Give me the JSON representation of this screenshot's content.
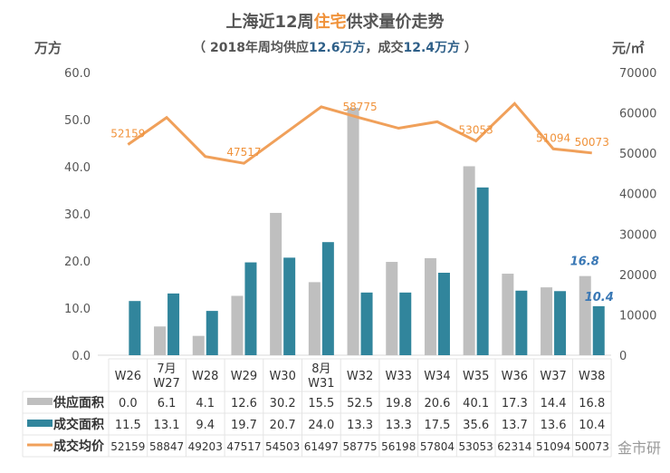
{
  "title": {
    "prefix": "上海近12周",
    "highlight": "住宅",
    "suffix": "供求量价走势"
  },
  "subtitle": {
    "p1": "（ 2018年周均供应",
    "v1": "12.6万方",
    "p2": "，成交",
    "v2": "12.4万方",
    "p3": " ）"
  },
  "watermark": "金市研",
  "chart_data": {
    "type": "bar+line",
    "categories": [
      [
        "",
        "W26"
      ],
      [
        "7月",
        "W27"
      ],
      [
        "",
        "W28"
      ],
      [
        "",
        "W29"
      ],
      [
        "",
        "W30"
      ],
      [
        "8月",
        "W31"
      ],
      [
        "",
        "W32"
      ],
      [
        "",
        "W33"
      ],
      [
        "",
        "W34"
      ],
      [
        "",
        "W35"
      ],
      [
        "",
        "W36"
      ],
      [
        "",
        "W37"
      ],
      [
        "",
        "W38"
      ]
    ],
    "left_axis": {
      "unit": "万方",
      "range": [
        0,
        60
      ],
      "ticks": [
        "0.0",
        "10.0",
        "20.0",
        "30.0",
        "40.0",
        "50.0",
        "60.0"
      ]
    },
    "right_axis": {
      "unit": "元/㎡",
      "range": [
        0,
        70000
      ],
      "ticks": [
        "0",
        "10000",
        "20000",
        "30000",
        "40000",
        "50000",
        "60000",
        "70000"
      ]
    },
    "series": [
      {
        "name": "供应面积",
        "type": "bar",
        "color": "#bfbfbf",
        "values": [
          0.0,
          6.1,
          4.1,
          12.6,
          30.2,
          15.5,
          52.5,
          19.8,
          20.6,
          40.1,
          17.3,
          14.4,
          16.8
        ]
      },
      {
        "name": "成交面积",
        "type": "bar",
        "color": "#31859c",
        "values": [
          11.5,
          13.1,
          9.4,
          19.7,
          20.7,
          24.0,
          13.3,
          13.3,
          17.5,
          35.6,
          13.7,
          13.6,
          10.4
        ]
      },
      {
        "name": "成交均价",
        "type": "line",
        "axis": "right",
        "color": "#f0a05a",
        "values": [
          52159,
          58847,
          49203,
          47517,
          54503,
          61497,
          58775,
          56198,
          57804,
          53053,
          62314,
          51094,
          50073
        ]
      }
    ],
    "line_labels": [
      {
        "i": 0,
        "text": "52159"
      },
      {
        "i": 3,
        "text": "47517"
      },
      {
        "i": 6,
        "text": "58775"
      },
      {
        "i": 9,
        "text": "53053"
      },
      {
        "i": 11,
        "text": "51094"
      },
      {
        "i": 12,
        "text": "50073"
      }
    ],
    "bar_labels": [
      {
        "i": 12,
        "series": 0,
        "text": "16.8"
      },
      {
        "i": 12,
        "series": 1,
        "text": "10.4"
      }
    ],
    "table_values": [
      [
        "0.0",
        "6.1",
        "4.1",
        "12.6",
        "30.2",
        "15.5",
        "52.5",
        "19.8",
        "20.6",
        "40.1",
        "17.3",
        "14.4",
        "16.8"
      ],
      [
        "11.5",
        "13.1",
        "9.4",
        "19.7",
        "20.7",
        "24.0",
        "13.3",
        "13.3",
        "17.5",
        "35.6",
        "13.7",
        "13.6",
        "10.4"
      ],
      [
        "52159",
        "58847",
        "49203",
        "47517",
        "54503",
        "61497",
        "58775",
        "56198",
        "57804",
        "53053",
        "62314",
        "51094",
        "50073"
      ]
    ]
  }
}
